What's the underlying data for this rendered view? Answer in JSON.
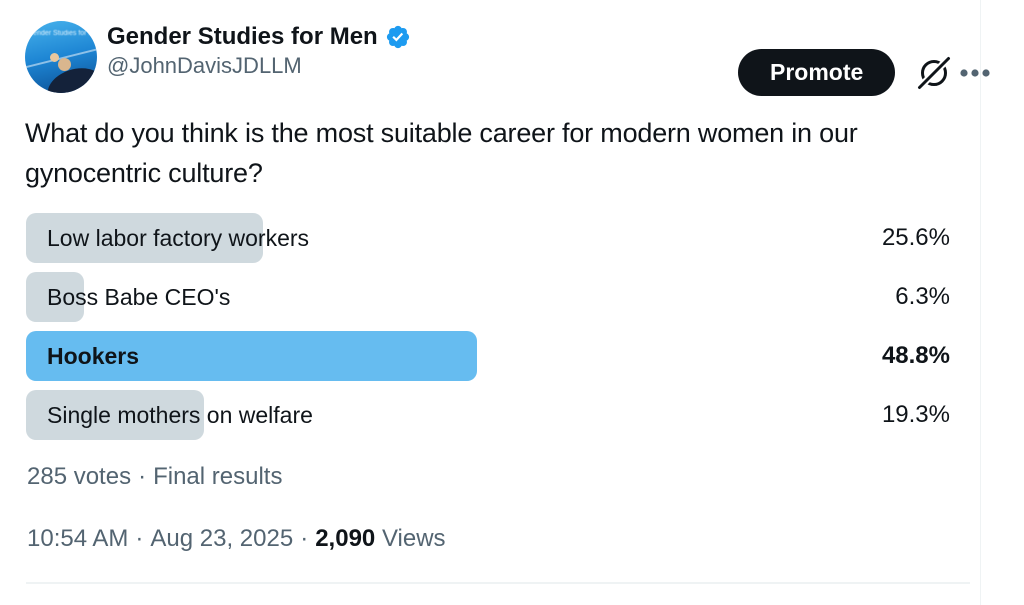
{
  "tweet": {
    "author": {
      "display_name": "Gender Studies for Men",
      "handle": "@JohnDavisJDLLM",
      "verified": true,
      "avatar_caption": "Gender Studies for M"
    },
    "actions": {
      "promote_label": "Promote"
    },
    "icons": {
      "grok": "grok-slashed-circle-icon",
      "more": "ellipsis-icon",
      "verified": "verified-badge-icon"
    },
    "body_text": "What do you think is the most suitable career for modern women in our gynocentric culture?",
    "poll": {
      "options": [
        {
          "label": "Low labor factory workers",
          "percent_label": "25.6%",
          "value": 25.6,
          "winner": false
        },
        {
          "label": "Boss Babe CEO's",
          "percent_label": "6.3%",
          "value": 6.3,
          "winner": false
        },
        {
          "label": "Hookers",
          "percent_label": "48.8%",
          "value": 48.8,
          "winner": true
        },
        {
          "label": "Single mothers on welfare",
          "percent_label": "19.3%",
          "value": 19.3,
          "winner": false
        }
      ],
      "votes_summary": "285 votes",
      "status": "Final results",
      "separator": "·"
    },
    "meta": {
      "time": "10:54 AM",
      "date": "Aug 23, 2025",
      "views_count": "2,090",
      "views_label": "Views",
      "separator": "·"
    }
  },
  "colors": {
    "text_primary": "#0F1419",
    "text_secondary": "#536471",
    "poll_bar_gray": "#CFD9DE",
    "poll_bar_blue": "#66BCF0",
    "verified_blue": "#1D9BF0",
    "promote_bg": "#0F1419",
    "promote_text": "#FFFFFF",
    "divider": "#EFF3F4"
  }
}
